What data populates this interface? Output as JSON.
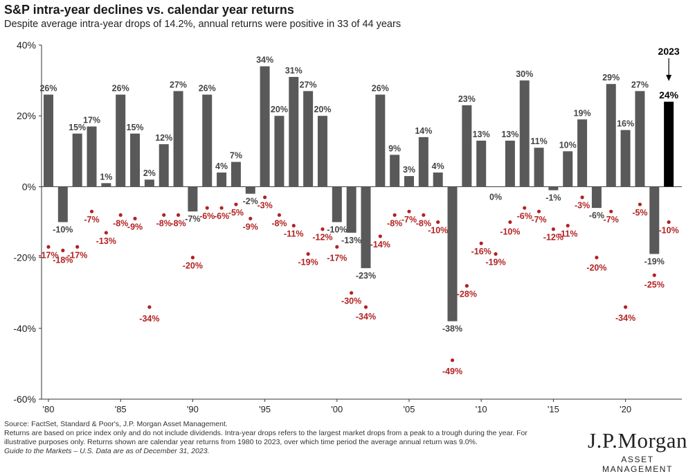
{
  "header": {
    "title": "S&P intra-year declines vs. calendar year returns",
    "subtitle": "Despite average intra-year drops of 14.2%, annual returns were positive in 33 of 44 years"
  },
  "footnote": {
    "line1": "Source: FactSet, Standard & Poor's, J.P. Morgan Asset Management.",
    "line2": "Returns are based on price index only and do not include dividends. Intra-year drops refers to the largest market drops from a peak to a trough during the year. For illustrative purposes only. Returns shown are calendar year returns from 1980 to 2023, over which time period the average annual return was 9.0%.",
    "line3": "Guide to the Markets – U.S. Data are as of December 31, 2023."
  },
  "logo": {
    "brand": "J.P.Morgan",
    "sub": "ASSET MANAGEMENT"
  },
  "colors": {
    "bar": "#595959",
    "bar_highlight": "#000000",
    "dot": "#b22222",
    "dot_label": "#b22222",
    "bar_label": "#444444"
  },
  "chart_data": {
    "type": "bar",
    "x": [
      1980,
      1981,
      1982,
      1983,
      1984,
      1985,
      1986,
      1987,
      1988,
      1989,
      1990,
      1991,
      1992,
      1993,
      1994,
      1995,
      1996,
      1997,
      1998,
      1999,
      2000,
      2001,
      2002,
      2003,
      2004,
      2005,
      2006,
      2007,
      2008,
      2009,
      2010,
      2011,
      2012,
      2013,
      2014,
      2015,
      2016,
      2017,
      2018,
      2019,
      2020,
      2021,
      2022,
      2023
    ],
    "x_tick_labels": [
      "'80",
      "'85",
      "'90",
      "'95",
      "'00",
      "'05",
      "'10",
      "'15",
      "'20"
    ],
    "x_tick_years": [
      1980,
      1985,
      1990,
      1995,
      2000,
      2005,
      2010,
      2015,
      2020
    ],
    "ylim": [
      -60,
      40
    ],
    "y_ticks": [
      40,
      20,
      0,
      -20,
      -40,
      -60
    ],
    "y_tick_labels": [
      "40%",
      "20%",
      "0%",
      "-20%",
      "-40%",
      "-60%"
    ],
    "series": [
      {
        "values": [
          26,
          -10,
          15,
          17,
          1,
          26,
          15,
          2,
          12,
          27,
          -7,
          26,
          4,
          7,
          -2,
          34,
          20,
          31,
          27,
          20,
          -10,
          -13,
          -23,
          26,
          9,
          3,
          14,
          4,
          -38,
          23,
          13,
          0,
          13,
          30,
          11,
          -1,
          10,
          19,
          -6,
          29,
          16,
          27,
          -19,
          24
        ],
        "labels": [
          "26%",
          "-10%",
          "15%",
          "17%",
          "1%",
          "26%",
          "15%",
          "2%",
          "12%",
          "27%",
          "-7%",
          "26%",
          "4%",
          "7%",
          "-2%",
          "34%",
          "20%",
          "31%",
          "27%",
          "20%",
          "-10%",
          "-13%",
          "-23%",
          "26%",
          "9%",
          "3%",
          "14%",
          "4%",
          "-38%",
          "23%",
          "13%",
          "0%",
          "13%",
          "30%",
          "11%",
          "-1%",
          "10%",
          "19%",
          "-6%",
          "29%",
          "16%",
          "27%",
          "-19%",
          "24%"
        ]
      },
      {
        "values": [
          -17,
          -18,
          -17,
          -7,
          -13,
          -8,
          -9,
          -34,
          -8,
          -8,
          -20,
          -6,
          -6,
          -5,
          -9,
          -3,
          -8,
          -11,
          -19,
          -12,
          -17,
          -30,
          -34,
          -14,
          -8,
          -7,
          -8,
          -10,
          -49,
          -28,
          -16,
          -19,
          -10,
          -6,
          -7,
          -12,
          -11,
          -3,
          -20,
          -7,
          -34,
          -5,
          -25,
          -10
        ],
        "labels": [
          "-17%",
          "-18%",
          "-17%",
          "-7%",
          "-13%",
          "-8%",
          "-9%",
          "-34%",
          "-8%",
          "-8%",
          "-20%",
          "-6%",
          "-6%",
          "-5%",
          "-9%",
          "-3%",
          "-8%",
          "-11%",
          "-19%",
          "-12%",
          "-17%",
          "-30%",
          "-34%",
          "-14%",
          "-8%",
          "-7%",
          "-8%",
          "-10%",
          "-49%",
          "-28%",
          "-16%",
          "-19%",
          "-10%",
          "-6%",
          "-7%",
          "-12%",
          "-11%",
          "-3%",
          "-20%",
          "-7%",
          "-34%",
          "-5%",
          "-25%",
          "-10%"
        ]
      }
    ],
    "highlight": {
      "year": 2023,
      "label": "2023"
    }
  }
}
